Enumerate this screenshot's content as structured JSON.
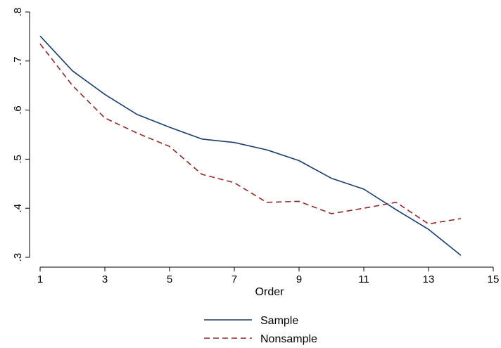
{
  "chart_data": {
    "type": "line",
    "title": "",
    "xlabel": "Order",
    "ylabel": "",
    "xlim": [
      1,
      15
    ],
    "ylim": [
      0.3,
      0.8
    ],
    "x_ticks": [
      1,
      3,
      5,
      7,
      9,
      11,
      13,
      15
    ],
    "x_tick_labels": [
      "1",
      "3",
      "5",
      "7",
      "9",
      "11",
      "13",
      "15"
    ],
    "y_ticks": [
      0.3,
      0.4,
      0.5,
      0.6,
      0.7,
      0.8
    ],
    "y_tick_labels": [
      ".3",
      ".4",
      ".5",
      ".6",
      ".7",
      ".8"
    ],
    "grid": false,
    "legend_position": "bottom",
    "series": [
      {
        "name": "Sample",
        "color": "#1a3d6b",
        "dash": "solid",
        "x": [
          1,
          2,
          3,
          4,
          5,
          6,
          7,
          8,
          9,
          10,
          11,
          12,
          13,
          14
        ],
        "values": [
          0.751,
          0.68,
          0.632,
          0.591,
          0.565,
          0.541,
          0.534,
          0.519,
          0.497,
          0.461,
          0.439,
          0.397,
          0.357,
          0.304
        ]
      },
      {
        "name": "Nonsample",
        "color": "#8b2a2a",
        "dash": "dashed",
        "x": [
          1,
          2,
          3,
          4,
          5,
          6,
          7,
          8,
          9,
          10,
          11,
          12,
          13,
          14
        ],
        "values": [
          0.735,
          0.65,
          0.584,
          0.553,
          0.526,
          0.469,
          0.452,
          0.412,
          0.414,
          0.389,
          0.4,
          0.412,
          0.368,
          0.379
        ]
      }
    ]
  }
}
